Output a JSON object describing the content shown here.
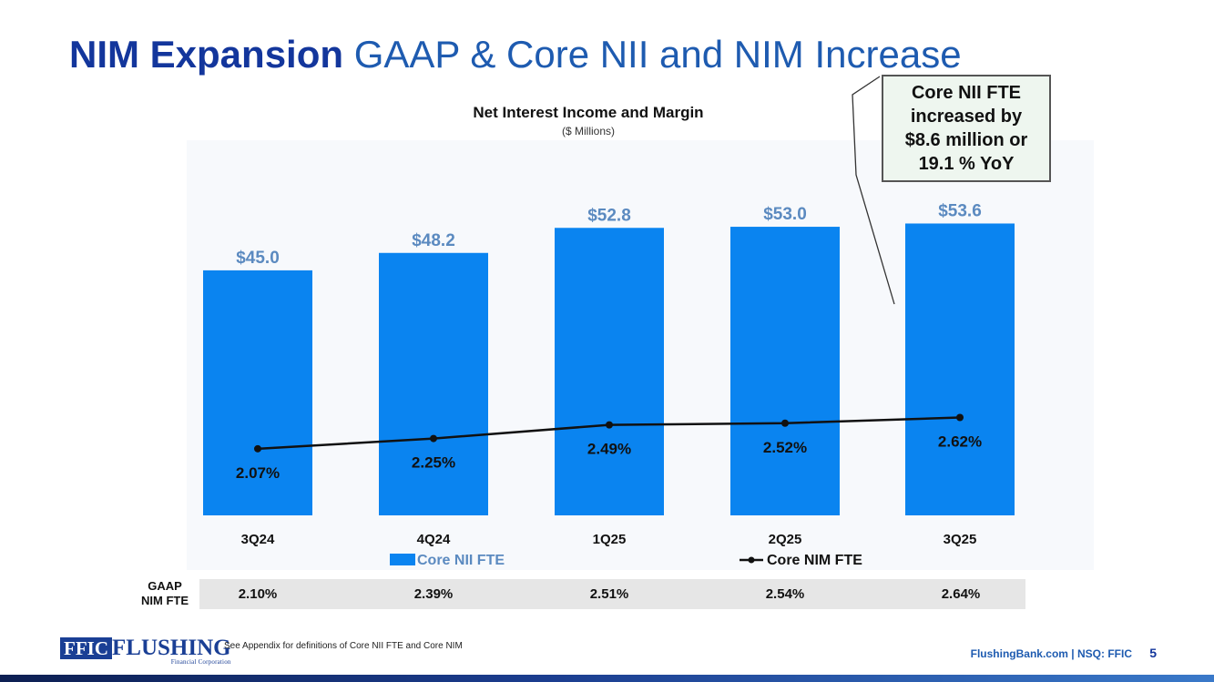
{
  "header": {
    "title_bold": "NIM Expansion",
    "title_rest": " GAAP & Core NII and NIM Increase"
  },
  "callout": {
    "text": "Core NII FTE increased by $8.6 million or 19.1 % YoY"
  },
  "chart_data": {
    "type": "bar",
    "title": "Net Interest Income and Margin",
    "subtitle": "($ Millions)",
    "categories": [
      "3Q24",
      "4Q24",
      "1Q25",
      "2Q25",
      "3Q25"
    ],
    "series": [
      {
        "name": "Core NII FTE",
        "kind": "bar",
        "values": [
          45.0,
          48.2,
          52.8,
          53.0,
          53.6
        ],
        "labels": [
          "$45.0",
          "$48.2",
          "$52.8",
          "$53.0",
          "$53.6"
        ],
        "color": "#0a84f0",
        "label_color": "#5b8ac0"
      },
      {
        "name": "Core NIM FTE",
        "kind": "line",
        "values": [
          2.07,
          2.25,
          2.49,
          2.52,
          2.62
        ],
        "labels": [
          "2.07%",
          "2.25%",
          "2.49%",
          "2.52%",
          "2.62%"
        ],
        "color": "#111111"
      }
    ],
    "legend": "bottom",
    "ylim_bars": [
      0,
      60
    ],
    "ylim_line": [
      0,
      6
    ],
    "grid": false
  },
  "gaap_row": {
    "label_line1": "GAAP",
    "label_line2": "NIM FTE",
    "values": [
      "2.10%",
      "2.39%",
      "2.51%",
      "2.54%",
      "2.64%"
    ]
  },
  "footer": {
    "logo_ffic": "FFIC",
    "logo_name": "FLUSHING",
    "logo_sub": "Financial Corporation",
    "footnote": "See Appendix for definitions of Core NII FTE and Core NIM",
    "site": "FlushingBank.com  |  NSQ: FFIC",
    "page_number": "5"
  },
  "colors": {
    "title_dark": "#13369c",
    "title_light": "#1e5bb0",
    "bar": "#0a84f0"
  }
}
